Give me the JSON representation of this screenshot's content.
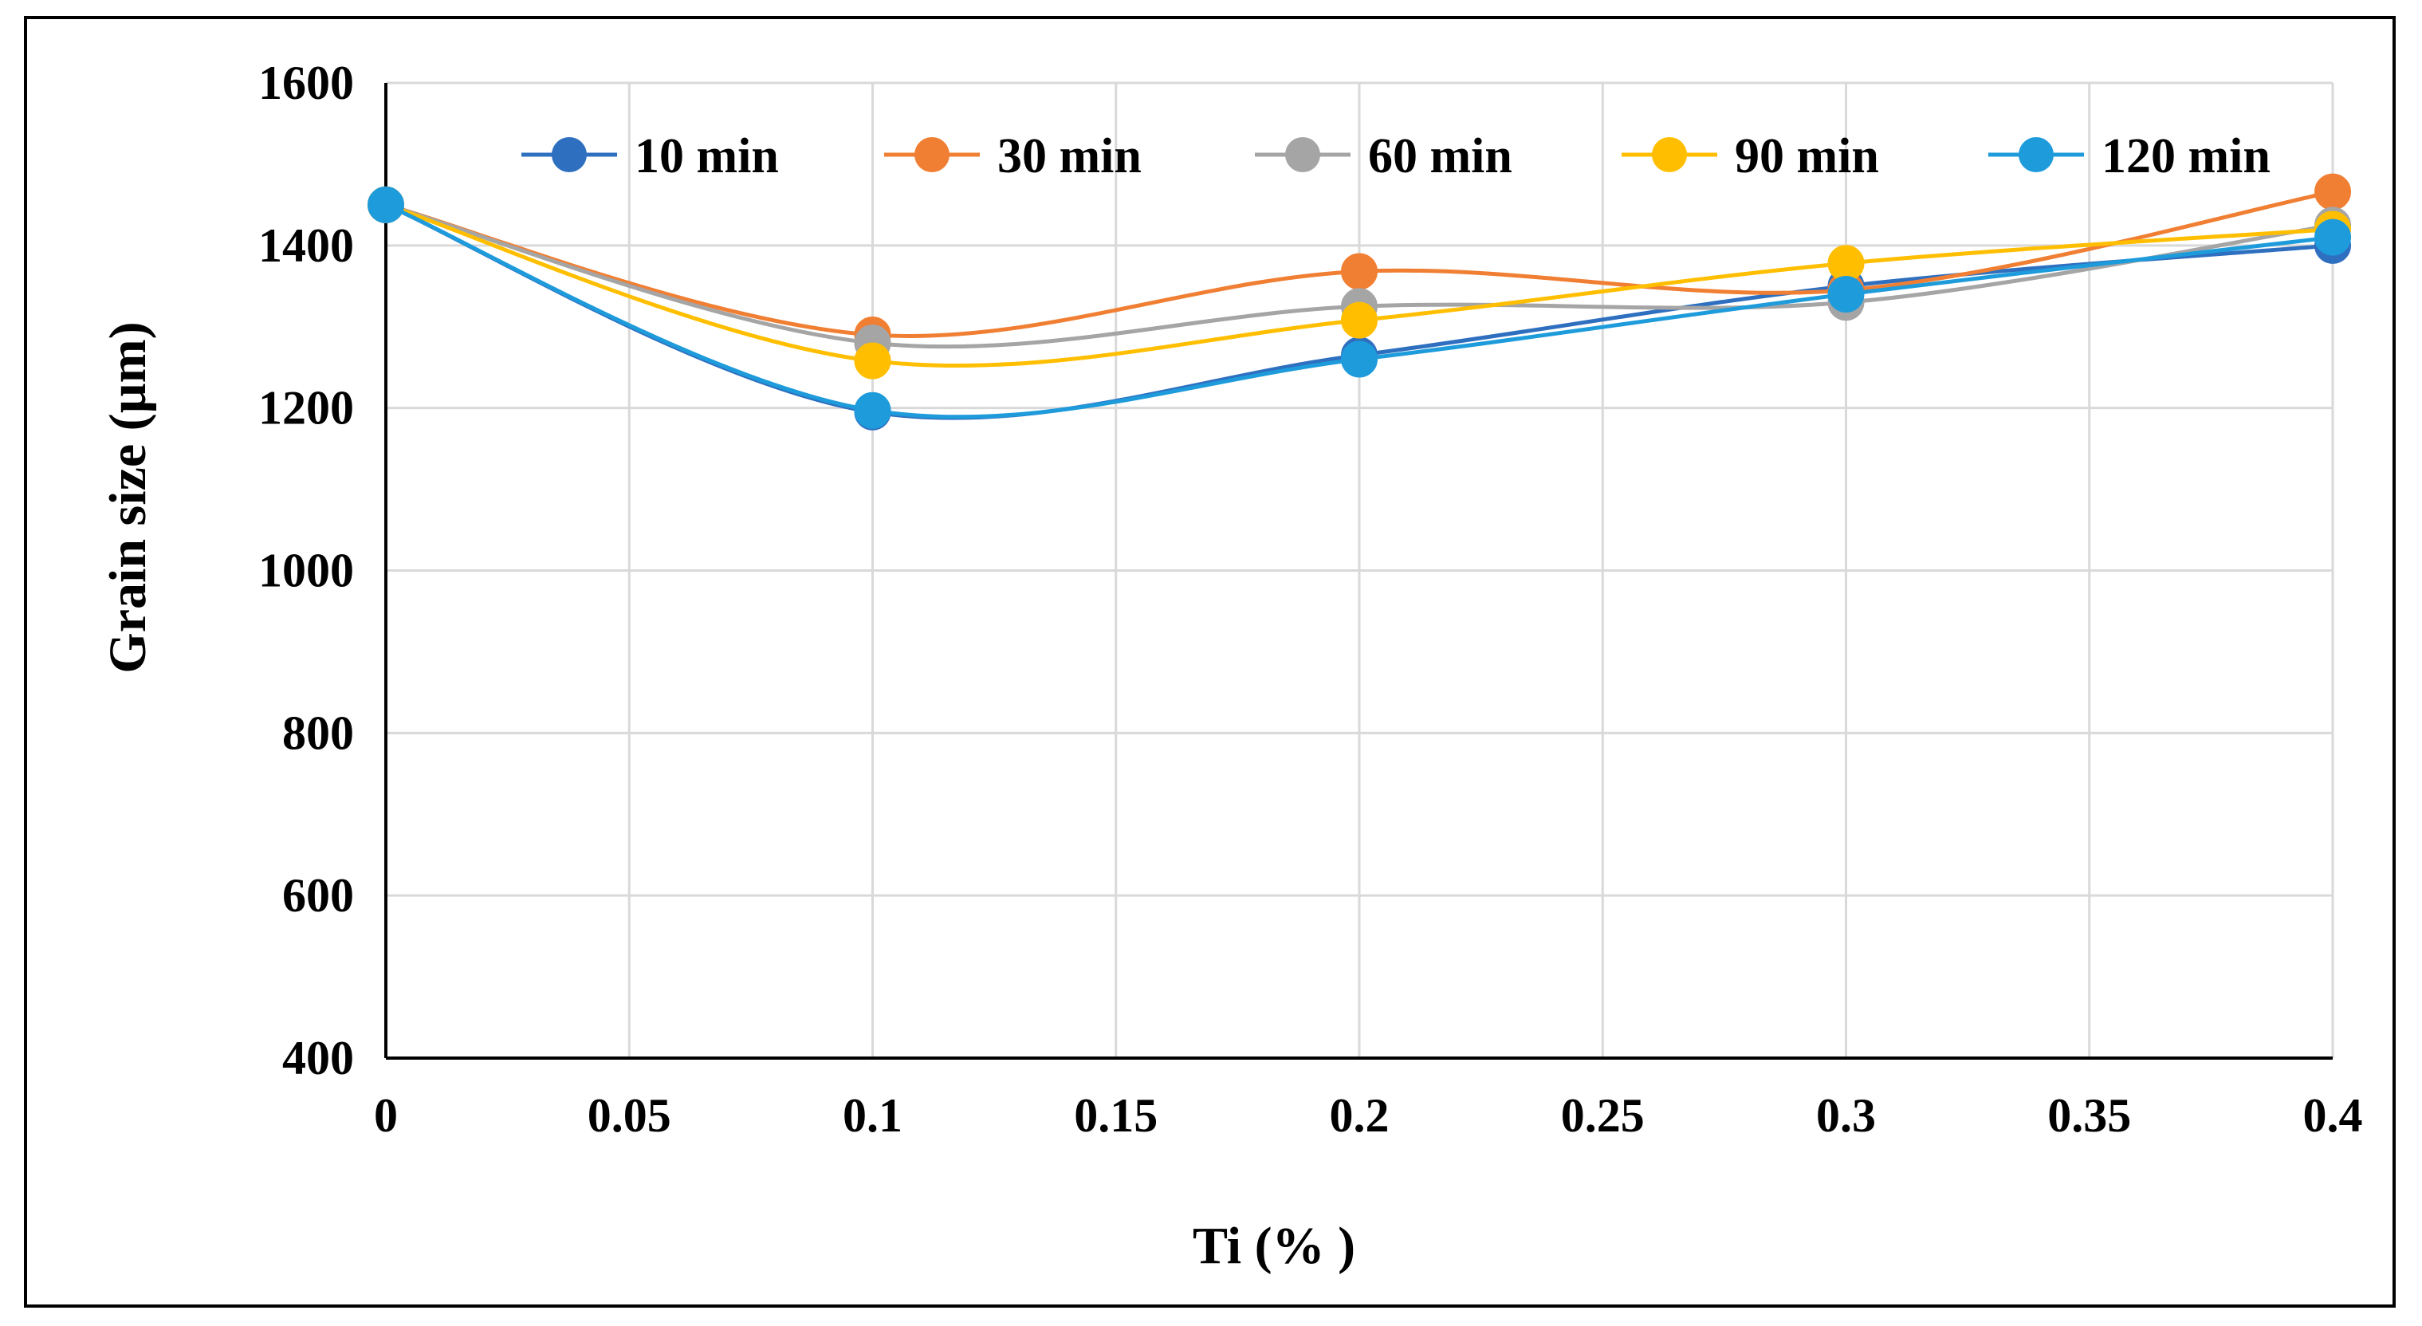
{
  "chart_data": {
    "type": "line",
    "title": "",
    "xlabel": "Ti  (% )",
    "ylabel": "Grain size (µm)",
    "x": [
      0,
      0.1,
      0.2,
      0.3,
      0.4
    ],
    "xlim": [
      0,
      0.4
    ],
    "ylim": [
      400,
      1600
    ],
    "xticks": [
      0,
      0.05,
      0.1,
      0.15,
      0.2,
      0.25,
      0.3,
      0.35,
      0.4
    ],
    "xtick_labels": [
      "0",
      "0.05",
      "0.1",
      "0.15",
      "0.2",
      "0.25",
      "0.3",
      "0.35",
      "0.4"
    ],
    "yticks": [
      400,
      600,
      800,
      1000,
      1200,
      1400,
      1600
    ],
    "ytick_labels": [
      "400",
      "600",
      "800",
      "1000",
      "1200",
      "1400",
      "1600"
    ],
    "grid": true,
    "smooth": true,
    "legend_position": "top",
    "series": [
      {
        "name": "10 min",
        "color": "#2E6FC0",
        "values": [
          1450,
          1195,
          1265,
          1350,
          1400
        ]
      },
      {
        "name": "30 min",
        "color": "#F07F33",
        "values": [
          1450,
          1290,
          1368,
          1345,
          1466
        ]
      },
      {
        "name": "60 min",
        "color": "#A5A5A5",
        "values": [
          1450,
          1280,
          1325,
          1330,
          1425
        ]
      },
      {
        "name": "90 min",
        "color": "#FFBF00",
        "values": [
          1450,
          1258,
          1308,
          1378,
          1420
        ]
      },
      {
        "name": "120 min",
        "color": "#1E9BDB",
        "values": [
          1450,
          1197,
          1260,
          1340,
          1410
        ]
      }
    ]
  }
}
